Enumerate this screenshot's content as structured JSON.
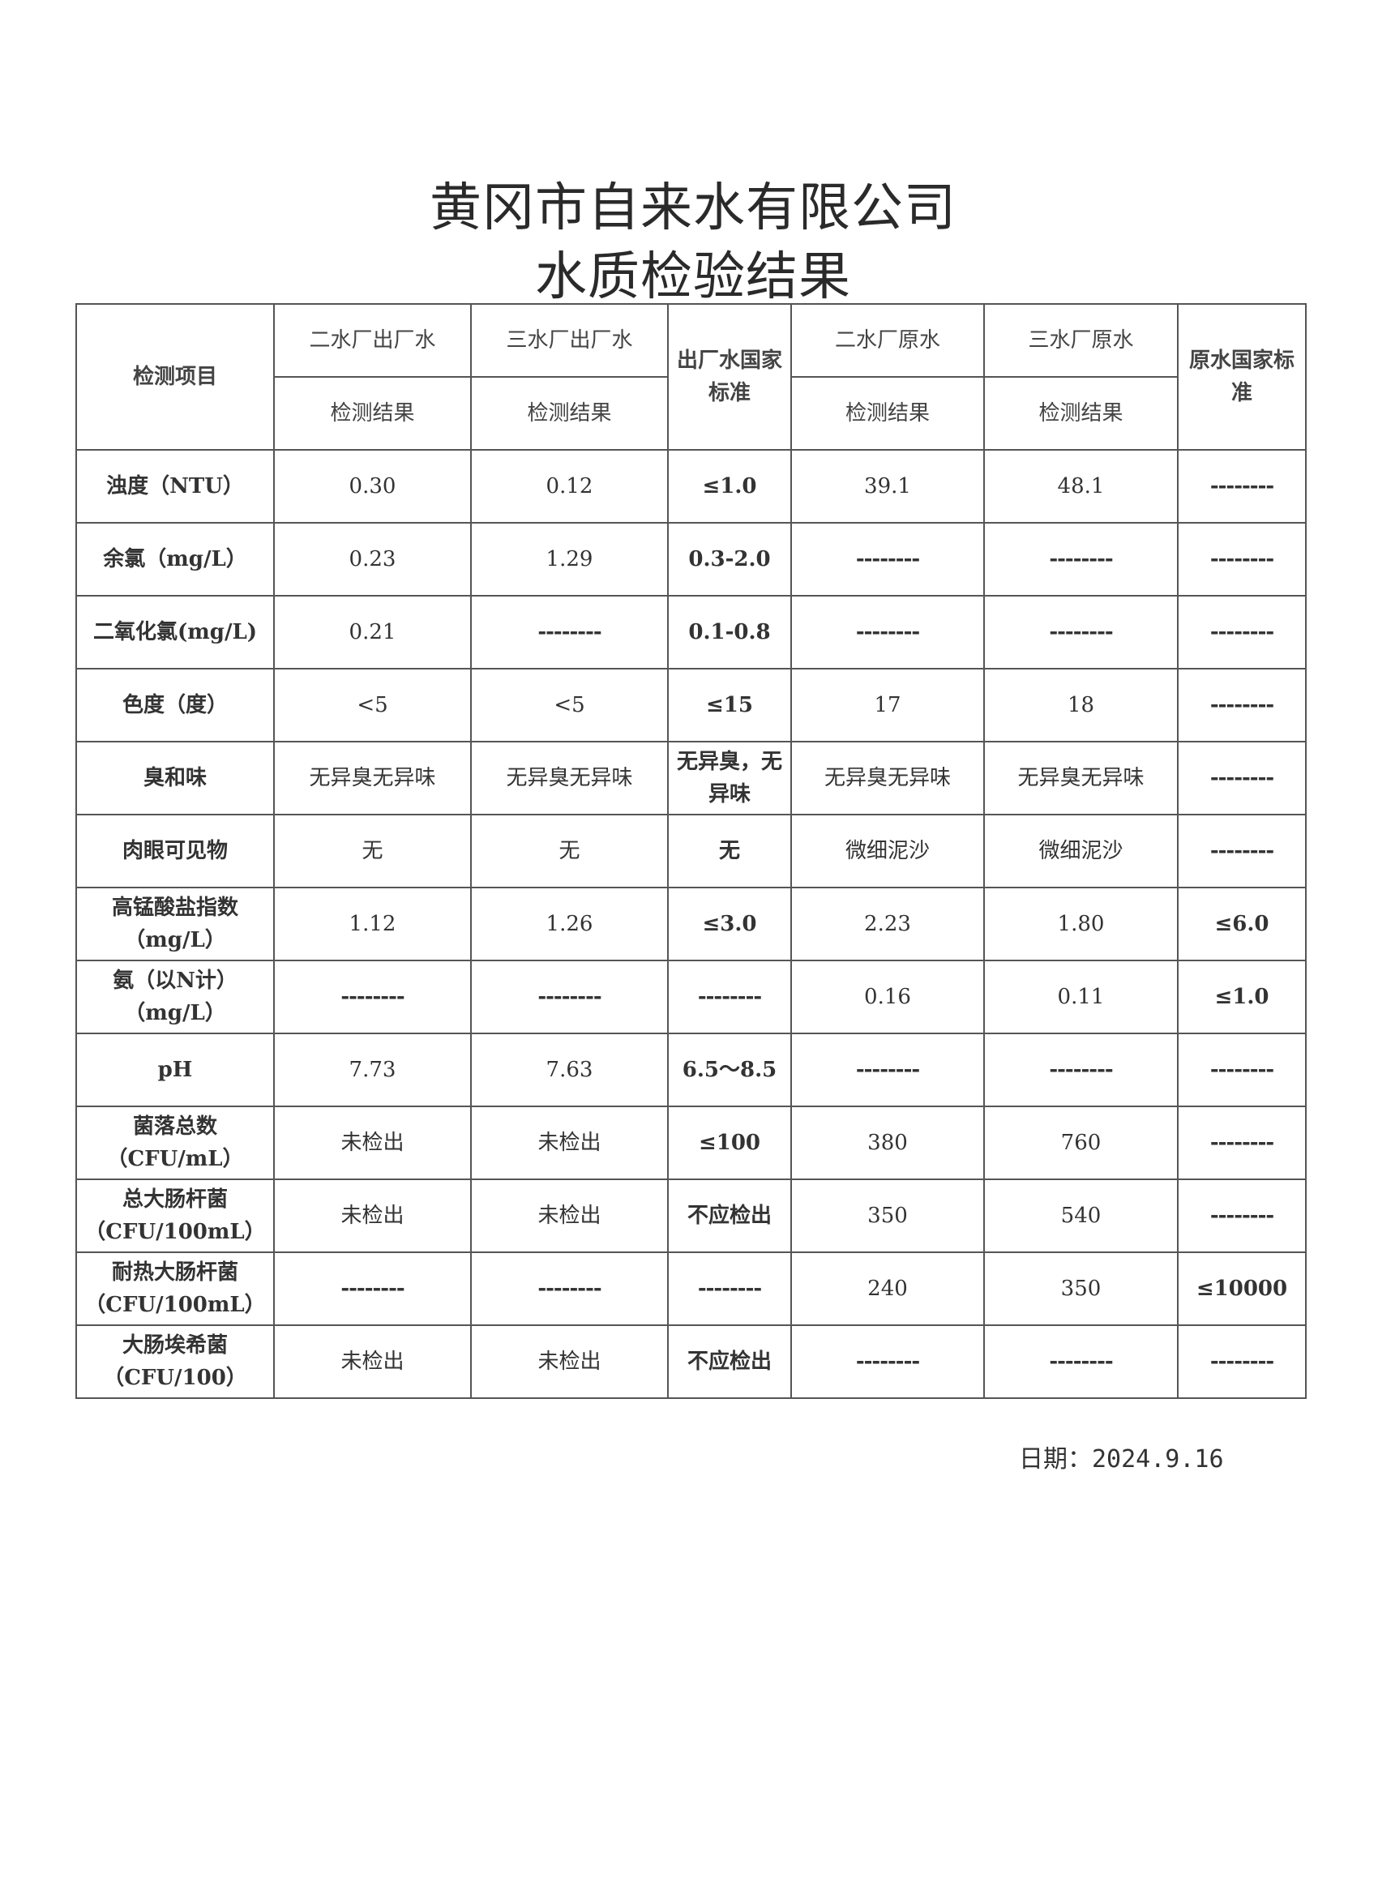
{
  "title": {
    "line1": "黄冈市自来水有限公司",
    "line2": "水质检验结果"
  },
  "header": {
    "item": "检测项目",
    "col1": "二水厂出厂水",
    "col2": "三水厂出厂水",
    "col3": "出厂水国家标准",
    "col4": "二水厂原水",
    "col5": "三水厂原水",
    "col6": "原水国家标准",
    "result": "检测结果"
  },
  "rows": [
    {
      "item": "浊度（NTU）",
      "v": [
        "0.30",
        "0.12",
        "≤1.0",
        "39.1",
        "48.1",
        "--------"
      ]
    },
    {
      "item": "余氯（mg/L）",
      "v": [
        "0.23",
        "1.29",
        "0.3-2.0",
        "--------",
        "--------",
        "--------"
      ]
    },
    {
      "item": "二氧化氯(mg/L)",
      "v": [
        "0.21",
        "--------",
        "0.1-0.8",
        "--------",
        "--------",
        "--------"
      ]
    },
    {
      "item": "色度（度）",
      "v": [
        "<5",
        "<5",
        "≤15",
        "17",
        "18",
        "--------"
      ]
    },
    {
      "item": "臭和味",
      "v": [
        "无异臭无异味",
        "无异臭无异味",
        "无异臭，无异味",
        "无异臭无异味",
        "无异臭无异味",
        "--------"
      ]
    },
    {
      "item": "肉眼可见物",
      "v": [
        "无",
        "无",
        "无",
        "微细泥沙",
        "微细泥沙",
        "--------"
      ]
    },
    {
      "item": "高锰酸盐指数（mg/L）",
      "v": [
        "1.12",
        "1.26",
        "≤3.0",
        "2.23",
        "1.80",
        "≤6.0"
      ]
    },
    {
      "item": "氨（以N计）（mg/L）",
      "v": [
        "--------",
        "--------",
        "--------",
        "0.16",
        "0.11",
        "≤1.0"
      ]
    },
    {
      "item": "pH",
      "v": [
        "7.73",
        "7.63",
        "6.5～8.5",
        "--------",
        "--------",
        "--------"
      ]
    },
    {
      "item": "菌落总数（CFU/mL）",
      "v": [
        "未检出",
        "未检出",
        "≤100",
        "380",
        "760",
        "--------"
      ]
    },
    {
      "item": "总大肠杆菌（CFU/100mL）",
      "v": [
        "未检出",
        "未检出",
        "不应检出",
        "350",
        "540",
        "--------"
      ]
    },
    {
      "item": "耐热大肠杆菌（CFU/100mL）",
      "v": [
        "--------",
        "--------",
        "--------",
        "240",
        "350",
        "≤10000"
      ]
    },
    {
      "item": "大肠埃希菌（CFU/100）",
      "v": [
        "未检出",
        "未检出",
        "不应检出",
        "--------",
        "--------",
        "--------"
      ]
    }
  ],
  "date": "日期：2024.9.16"
}
